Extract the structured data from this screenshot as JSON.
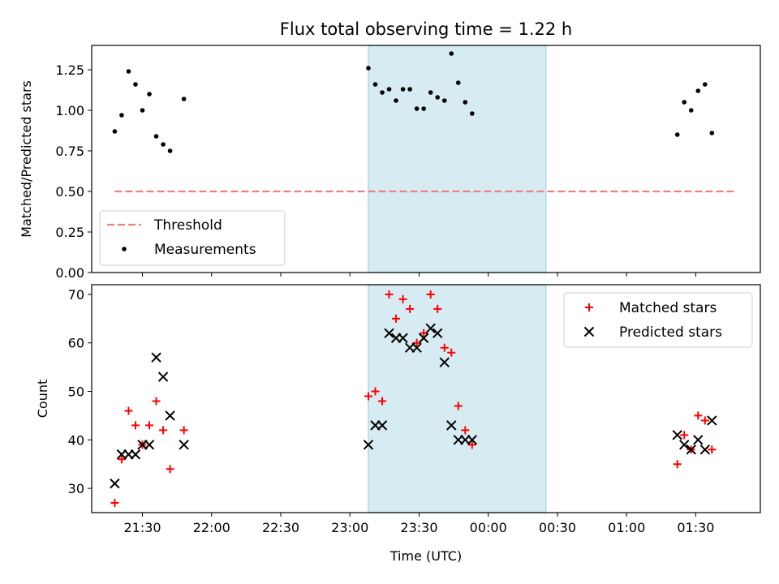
{
  "chart_data": {
    "title": "Flux total observing time = 1.22 h",
    "xlabel": "Time (UTC)",
    "x_ticks": [
      "21:30",
      "22:00",
      "22:30",
      "23:00",
      "23:30",
      "00:00",
      "00:30",
      "01:00",
      "01:30"
    ],
    "x_range": [
      "21:08",
      "01:58"
    ],
    "shaded_interval": [
      "23:08",
      "00:25"
    ],
    "colors": {
      "measurements": "#000000",
      "threshold": "#f08080",
      "matched": "#ff0000",
      "predicted": "#000000",
      "shade": "#add8e6"
    },
    "panels": [
      {
        "type": "scatter",
        "ylabel": "Matched/Predicted stars",
        "ylim": [
          0.0,
          1.4
        ],
        "y_ticks": [
          "0.00",
          "0.25",
          "0.50",
          "0.75",
          "1.00",
          "1.25"
        ],
        "legend": {
          "position": "lower-left",
          "threshold": "Threshold",
          "measurements": "Measurements"
        },
        "threshold": {
          "name": "Threshold",
          "y": 0.5,
          "x_start": "21:18",
          "x_end": "01:48"
        },
        "measurements": {
          "name": "Measurements",
          "points": [
            [
              "21:18",
              0.87
            ],
            [
              "21:21",
              0.97
            ],
            [
              "21:24",
              1.24
            ],
            [
              "21:27",
              1.16
            ],
            [
              "21:30",
              1.0
            ],
            [
              "21:33",
              1.1
            ],
            [
              "21:36",
              0.84
            ],
            [
              "21:39",
              0.79
            ],
            [
              "21:42",
              0.75
            ],
            [
              "21:48",
              1.07
            ],
            [
              "23:08",
              1.26
            ],
            [
              "23:11",
              1.16
            ],
            [
              "23:14",
              1.11
            ],
            [
              "23:17",
              1.13
            ],
            [
              "23:20",
              1.06
            ],
            [
              "23:23",
              1.13
            ],
            [
              "23:26",
              1.13
            ],
            [
              "23:29",
              1.01
            ],
            [
              "23:32",
              1.01
            ],
            [
              "23:35",
              1.11
            ],
            [
              "23:38",
              1.08
            ],
            [
              "23:41",
              1.06
            ],
            [
              "23:44",
              1.35
            ],
            [
              "23:47",
              1.17
            ],
            [
              "23:50",
              1.05
            ],
            [
              "23:53",
              0.98
            ],
            [
              "01:22",
              0.85
            ],
            [
              "01:25",
              1.05
            ],
            [
              "01:28",
              1.0
            ],
            [
              "01:31",
              1.12
            ],
            [
              "01:34",
              1.16
            ],
            [
              "01:37",
              0.86
            ]
          ]
        }
      },
      {
        "type": "scatter",
        "ylabel": "Count",
        "ylim": [
          25,
          72
        ],
        "y_ticks": [
          "30",
          "40",
          "50",
          "60",
          "70"
        ],
        "legend": {
          "position": "top-right",
          "matched": "Matched stars",
          "predicted": "Predicted stars"
        },
        "series": [
          {
            "name": "Matched stars",
            "marker": "+",
            "points": [
              [
                "21:18",
                27
              ],
              [
                "21:21",
                36
              ],
              [
                "21:24",
                46
              ],
              [
                "21:27",
                43
              ],
              [
                "21:30",
                39
              ],
              [
                "21:33",
                43
              ],
              [
                "21:36",
                48
              ],
              [
                "21:39",
                42
              ],
              [
                "21:42",
                34
              ],
              [
                "21:48",
                42
              ],
              [
                "23:08",
                49
              ],
              [
                "23:11",
                50
              ],
              [
                "23:14",
                48
              ],
              [
                "23:17",
                70
              ],
              [
                "23:20",
                65
              ],
              [
                "23:23",
                69
              ],
              [
                "23:26",
                67
              ],
              [
                "23:29",
                60
              ],
              [
                "23:32",
                62
              ],
              [
                "23:35",
                70
              ],
              [
                "23:38",
                67
              ],
              [
                "23:41",
                59
              ],
              [
                "23:44",
                58
              ],
              [
                "23:47",
                47
              ],
              [
                "23:50",
                42
              ],
              [
                "23:53",
                39
              ],
              [
                "01:22",
                35
              ],
              [
                "01:25",
                41
              ],
              [
                "01:28",
                38
              ],
              [
                "01:31",
                45
              ],
              [
                "01:34",
                44
              ],
              [
                "01:37",
                38
              ]
            ]
          },
          {
            "name": "Predicted stars",
            "marker": "x",
            "points": [
              [
                "21:18",
                31
              ],
              [
                "21:21",
                37
              ],
              [
                "21:24",
                37
              ],
              [
                "21:27",
                37
              ],
              [
                "21:30",
                39
              ],
              [
                "21:33",
                39
              ],
              [
                "21:36",
                57
              ],
              [
                "21:39",
                53
              ],
              [
                "21:42",
                45
              ],
              [
                "21:48",
                39
              ],
              [
                "23:08",
                39
              ],
              [
                "23:11",
                43
              ],
              [
                "23:14",
                43
              ],
              [
                "23:17",
                62
              ],
              [
                "23:20",
                61
              ],
              [
                "23:23",
                61
              ],
              [
                "23:26",
                59
              ],
              [
                "23:29",
                59
              ],
              [
                "23:32",
                61
              ],
              [
                "23:35",
                63
              ],
              [
                "23:38",
                62
              ],
              [
                "23:41",
                56
              ],
              [
                "23:44",
                43
              ],
              [
                "23:47",
                40
              ],
              [
                "23:50",
                40
              ],
              [
                "23:53",
                40
              ],
              [
                "01:22",
                41
              ],
              [
                "01:25",
                39
              ],
              [
                "01:28",
                38
              ],
              [
                "01:31",
                40
              ],
              [
                "01:34",
                38
              ],
              [
                "01:37",
                44
              ]
            ]
          }
        ]
      }
    ]
  }
}
